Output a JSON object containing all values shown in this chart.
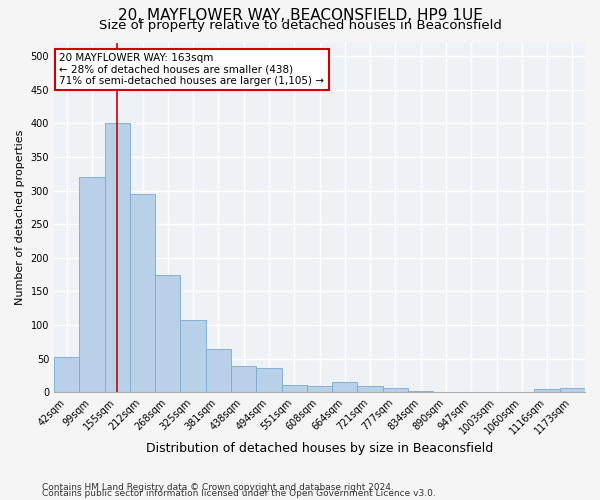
{
  "title1": "20, MAYFLOWER WAY, BEACONSFIELD, HP9 1UE",
  "title2": "Size of property relative to detached houses in Beaconsfield",
  "xlabel": "Distribution of detached houses by size in Beaconsfield",
  "ylabel": "Number of detached properties",
  "categories": [
    "42sqm",
    "99sqm",
    "155sqm",
    "212sqm",
    "268sqm",
    "325sqm",
    "381sqm",
    "438sqm",
    "494sqm",
    "551sqm",
    "608sqm",
    "664sqm",
    "721sqm",
    "777sqm",
    "834sqm",
    "890sqm",
    "947sqm",
    "1003sqm",
    "1060sqm",
    "1116sqm",
    "1173sqm"
  ],
  "values": [
    52,
    320,
    400,
    295,
    175,
    107,
    65,
    40,
    36,
    11,
    10,
    15,
    9,
    6,
    2,
    1,
    1,
    0,
    1,
    5,
    6
  ],
  "bar_color": "#b8d0e8",
  "bar_edge_color": "#7aaad0",
  "vline_x_index": 2,
  "vline_color": "#cc0000",
  "annotation_text": "20 MAYFLOWER WAY: 163sqm\n← 28% of detached houses are smaller (438)\n71% of semi-detached houses are larger (1,105) →",
  "annotation_box_color": "#ffffff",
  "annotation_box_edge_color": "#cc0000",
  "ylim": [
    0,
    520
  ],
  "yticks": [
    0,
    50,
    100,
    150,
    200,
    250,
    300,
    350,
    400,
    450,
    500
  ],
  "footer1": "Contains HM Land Registry data © Crown copyright and database right 2024.",
  "footer2": "Contains public sector information licensed under the Open Government Licence v3.0.",
  "bg_color": "#eef2f7",
  "grid_color": "#ffffff",
  "title1_fontsize": 11,
  "title2_fontsize": 9.5,
  "xlabel_fontsize": 9,
  "ylabel_fontsize": 8,
  "tick_fontsize": 7,
  "footer_fontsize": 6.5,
  "annotation_fontsize": 7.5
}
